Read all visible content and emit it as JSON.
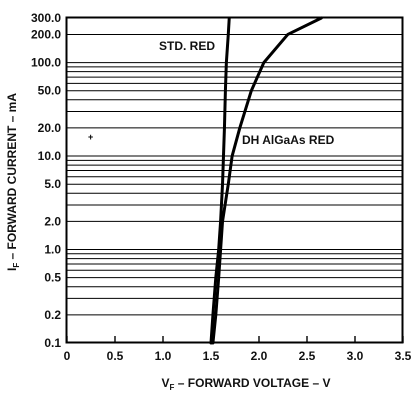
{
  "chart_data": {
    "type": "line",
    "xlabel": {
      "main": "V",
      "sub": "F",
      "rest": " – FORWARD VOLTAGE – V"
    },
    "ylabel": {
      "main": "I",
      "sub": "F",
      "rest": " – FORWARD CURRENT – mA"
    },
    "xlim": [
      0,
      3.5
    ],
    "ylim": [
      0.1,
      300
    ],
    "yscale": "log",
    "x_ticks": [
      "0",
      "0.5",
      "1.0",
      "1.5",
      "2.0",
      "2.5",
      "3.0",
      "3.5"
    ],
    "y_ticks": [
      "0.1",
      "0.2",
      "0.5",
      "1.0",
      "2.0",
      "5.0",
      "10.0",
      "20.0",
      "50.0",
      "100.0",
      "200.0",
      "300.0"
    ],
    "grid": "horizontal log-decade gridlines",
    "series": [
      {
        "name": "STD. RED",
        "points": [
          [
            1.5,
            0.1
          ],
          [
            1.52,
            0.2
          ],
          [
            1.55,
            0.5
          ],
          [
            1.58,
            1.0
          ],
          [
            1.6,
            2.0
          ],
          [
            1.62,
            5.0
          ],
          [
            1.63,
            10.0
          ],
          [
            1.64,
            20.0
          ],
          [
            1.65,
            50.0
          ],
          [
            1.66,
            100.0
          ],
          [
            1.68,
            200.0
          ],
          [
            1.69,
            300.0
          ]
        ]
      },
      {
        "name": "DH AlGaAs RED",
        "points": [
          [
            1.52,
            0.1
          ],
          [
            1.55,
            0.2
          ],
          [
            1.58,
            0.5
          ],
          [
            1.6,
            1.0
          ],
          [
            1.62,
            2.0
          ],
          [
            1.68,
            5.0
          ],
          [
            1.72,
            10.0
          ],
          [
            1.8,
            20.0
          ],
          [
            1.92,
            50.0
          ],
          [
            2.05,
            100.0
          ],
          [
            2.3,
            200.0
          ],
          [
            2.65,
            300.0
          ]
        ]
      }
    ],
    "colors": {
      "line": "#000000",
      "grid": "#000000",
      "background": "#ffffff"
    }
  }
}
